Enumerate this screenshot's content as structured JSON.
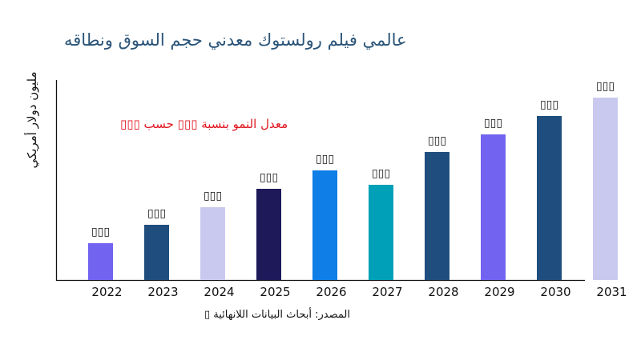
{
  "chart_data": {
    "type": "bar",
    "title": "عالمي فيلم رولستوك معدني حجم السوق ونطاقه",
    "ylabel": "مليون دولار أمريكي",
    "xlabel": "",
    "annotation": "معدل النمو بنسبة ▯▯▯ حسب ▯▯▯",
    "source": "المصدر: أبحاث البيانات اللانهائية ▯",
    "categories": [
      "2022",
      "2023",
      "2024",
      "2025",
      "2026",
      "2027",
      "2028",
      "2029",
      "2030",
      "2031"
    ],
    "values": [
      46,
      69,
      91,
      114,
      137,
      119,
      160,
      182,
      205,
      228
    ],
    "data_labels": [
      "▯▯▯",
      "▯▯▯",
      "▯▯▯",
      "▯▯▯",
      "▯▯▯",
      "▯▯▯",
      "▯▯▯",
      "▯▯▯",
      "▯▯▯",
      "▯▯▯"
    ],
    "colors": [
      "#7263f0",
      "#1f4e7e",
      "#c9c9f0",
      "#1e1a5a",
      "#0f7ee6",
      "#00a0b8",
      "#1f4e7e",
      "#7263f0",
      "#1f4e7e",
      "#c9c9f0"
    ],
    "ylim": [
      0,
      250
    ],
    "grid": false,
    "legend": "none"
  }
}
